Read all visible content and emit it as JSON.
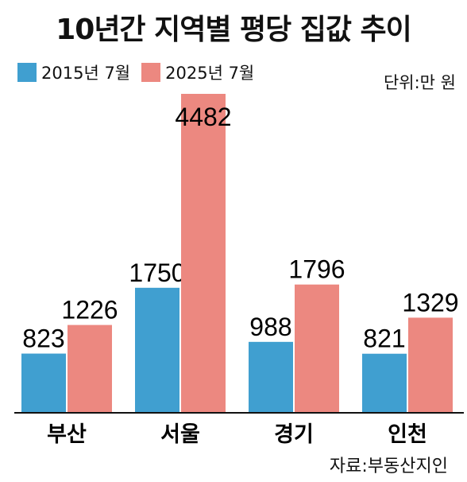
{
  "chart_data": {
    "type": "bar",
    "title": "10년간 지역별 평당 집값 추이",
    "unit_label": "단위:만 원",
    "source": "자료:부동산지인",
    "categories": [
      "부산",
      "서울",
      "경기",
      "인천"
    ],
    "series": [
      {
        "name": "2015년 7월",
        "color": "#409fd0",
        "values": [
          823,
          1750,
          988,
          821
        ]
      },
      {
        "name": "2025년 7월",
        "color": "#ec8880",
        "values": [
          1226,
          4482,
          1796,
          1329
        ]
      }
    ],
    "ylim": [
      0,
      4482
    ],
    "grid": false,
    "legend_position": "top-left"
  }
}
